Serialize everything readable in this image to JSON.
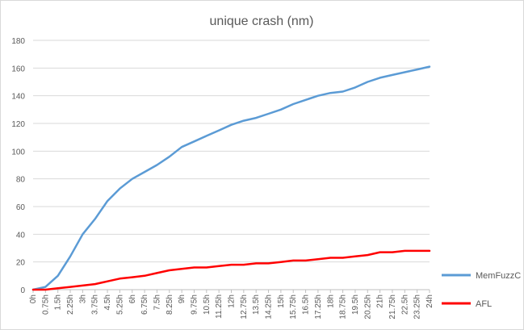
{
  "chart_data": {
    "type": "line",
    "title": "unique crash (nm)",
    "xlabel": "",
    "ylabel": "",
    "ylim": [
      0,
      180
    ],
    "y_ticks": [
      0,
      20,
      40,
      60,
      80,
      100,
      120,
      140,
      160,
      180
    ],
    "x_ticks": [
      "0h",
      "0.75h",
      "1.5h",
      "2.25h",
      "3h",
      "3.75h",
      "4.5h",
      "5.25h",
      "6h",
      "6.75h",
      "7.5h",
      "8.25h",
      "9h",
      "9.75h",
      "10.5h",
      "11.25h",
      "12h",
      "12.75h",
      "13.5h",
      "14.25h",
      "15h",
      "15.75h",
      "16.5h",
      "17.25h",
      "18h",
      "18.75h",
      "19.5h",
      "20.25h",
      "21h",
      "21.75h",
      "22.5h",
      "23.25h",
      "24h"
    ],
    "grid": true,
    "legend_position": "right",
    "x": [
      0,
      0.75,
      1.5,
      2.25,
      3,
      3.75,
      4.5,
      5.25,
      6,
      6.75,
      7.5,
      8.25,
      9,
      9.75,
      10.5,
      11.25,
      12,
      12.75,
      13.5,
      14.25,
      15,
      15.75,
      16.5,
      17.25,
      18,
      18.75,
      19.5,
      20.25,
      21,
      21.75,
      22.5,
      23.25,
      24
    ],
    "series": [
      {
        "name": "MemFuzzC",
        "color": "#5b9bd5",
        "values": [
          0,
          2,
          10,
          24,
          40,
          51,
          64,
          73,
          80,
          85,
          90,
          96,
          103,
          107,
          111,
          115,
          119,
          122,
          124,
          127,
          130,
          134,
          137,
          140,
          142,
          143,
          146,
          150,
          153,
          155,
          157,
          159,
          161
        ]
      },
      {
        "name": "AFL",
        "color": "#ff0000",
        "values": [
          0,
          0,
          1,
          2,
          3,
          4,
          6,
          8,
          9,
          10,
          12,
          14,
          15,
          16,
          16,
          17,
          18,
          18,
          19,
          19,
          20,
          21,
          21,
          22,
          23,
          23,
          24,
          25,
          27,
          27,
          28,
          28,
          28
        ]
      }
    ]
  }
}
